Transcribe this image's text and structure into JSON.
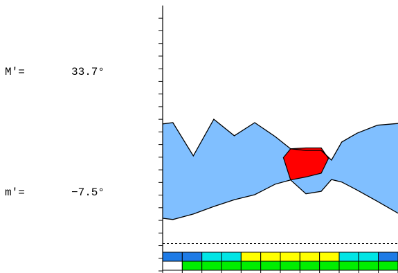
{
  "labels": {
    "max_label": "M′=",
    "max_value": "33.7°",
    "min_label": "m′=",
    "min_value": "−7.5°"
  },
  "chart_data": {
    "type": "area",
    "title": "",
    "xlabel": "",
    "ylabel": "",
    "ylim": [
      -14,
      49
    ],
    "grid": false,
    "reference_line": -7.5,
    "band_upper": [
      [
        0,
        20.9
      ],
      [
        1,
        21.2
      ],
      [
        3,
        13.3
      ],
      [
        5,
        22.0
      ],
      [
        7,
        18.1
      ],
      [
        9,
        21.2
      ],
      [
        11,
        17.9
      ],
      [
        12.5,
        15.0
      ],
      [
        14,
        14.6
      ],
      [
        15.5,
        14.6
      ],
      [
        16.5,
        12.3
      ],
      [
        17.5,
        16.6
      ],
      [
        19,
        18.7
      ],
      [
        21,
        20.6
      ],
      [
        23,
        21.0
      ]
    ],
    "band_lower": [
      [
        0,
        -1.5
      ],
      [
        1,
        -1.8
      ],
      [
        3,
        -0.5
      ],
      [
        5,
        1.3
      ],
      [
        7,
        2.9
      ],
      [
        9,
        4.1
      ],
      [
        11,
        6.6
      ],
      [
        12.5,
        7.6
      ],
      [
        14,
        4.3
      ],
      [
        15.5,
        4.9
      ],
      [
        16.5,
        7.7
      ],
      [
        17.5,
        7.1
      ],
      [
        19,
        5.2
      ],
      [
        21,
        2.5
      ],
      [
        23,
        -0.3
      ]
    ],
    "highlight_region": {
      "color": "#ff0000",
      "upper": [
        [
          11.8,
          12.9
        ],
        [
          12.5,
          15.0
        ],
        [
          14,
          15.2
        ],
        [
          15.5,
          15.2
        ],
        [
          16.2,
          12.7
        ]
      ],
      "lower": [
        [
          11.8,
          12.9
        ],
        [
          12.5,
          7.6
        ],
        [
          14,
          8.3
        ],
        [
          15.5,
          9.2
        ],
        [
          16.2,
          12.7
        ]
      ]
    },
    "strips": [
      {
        "name": "",
        "colors": [
          "#1e7be6",
          "#1e7be6",
          "#00e5e5",
          "#00e5e5",
          "#ffff00",
          "#ffff00",
          "#ffff00",
          "#ffff00",
          "#ffff00",
          "#00e5e5",
          "#00e5e5",
          "#1e7be6"
        ]
      },
      {
        "name": "",
        "colors": [
          "#ffffff",
          "#00ee00",
          "#00ee00",
          "#00ee00",
          "#00ee00",
          "#00ee00",
          "#00ee00",
          "#00ee00",
          "#00ee00",
          "#00ee00",
          "#00ee00",
          "#00ee00"
        ]
      }
    ],
    "colors": {
      "band": "#80bfff",
      "outline": "#000000",
      "reference": "#000000"
    }
  }
}
